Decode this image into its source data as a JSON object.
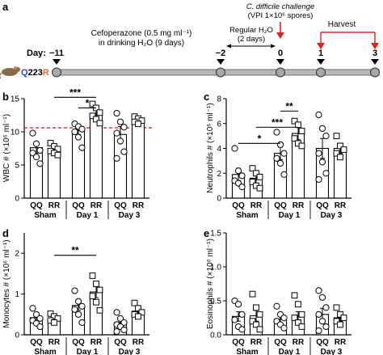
{
  "panel_a": {
    "letter": "a",
    "day_label": "Day:",
    "days": [
      "−11",
      "−2",
      "0",
      "1",
      "3"
    ],
    "mouse_label": {
      "q": "Q",
      "mid": "223",
      "r": "R"
    },
    "cef_line1": "Cefoperazone (0.5 mg ml⁻¹)",
    "cef_line2": "in drinking H₂O (9 days)",
    "reg_line1": "Regular H₂O",
    "reg_line2": "(2 days)",
    "cdiff_line1": "C. difficile challenge",
    "cdiff_line2": "(VPI 1×10⁶ spores)",
    "harvest": "Harvest",
    "colors": {
      "arrow_red": "#e02020",
      "q_blue": "#1f4fc4",
      "r_orange": "#e07020",
      "timeline": "#000000"
    }
  },
  "chart_data": [
    {
      "type": "bar",
      "panel": "b",
      "ylabel": "WBC # (×10⁶ ml⁻¹)",
      "ylim": [
        0,
        15
      ],
      "yticks": [
        "0",
        "5",
        "10",
        "15"
      ],
      "categories": [
        "QQ",
        "RR",
        "QQ",
        "RR",
        "QQ",
        "RR"
      ],
      "groups": [
        "Sham",
        "Day 1",
        "Day 3"
      ],
      "values": [
        7.6,
        7.4,
        10.2,
        12.8,
        9.6,
        11.8
      ],
      "errors": [
        0.8,
        0.5,
        0.6,
        0.7,
        1.2,
        0.3
      ],
      "points": [
        [
          9.8,
          8.2,
          7.2,
          6.8,
          6.2,
          5.2
        ],
        [
          8.3,
          7.8,
          7.4,
          7.1,
          6.8,
          6.5
        ],
        [
          11.2,
          10.8,
          10.4,
          10.0,
          9.2,
          7.6
        ],
        [
          14.2,
          13.6,
          12.9,
          12.4,
          11.9,
          11.3
        ],
        [
          12.8,
          11.5,
          10.7,
          9.8,
          8.6,
          7.0,
          6.0
        ],
        [
          12.3,
          12.0,
          11.7,
          11.5,
          11.2
        ]
      ],
      "reference_line": 10.6,
      "significance": [
        {
          "from": 1,
          "to": 3,
          "label": "***",
          "level": 15.2
        },
        {
          "from": 2,
          "to": 3,
          "label": "*",
          "level": 13.6
        }
      ]
    },
    {
      "type": "bar",
      "panel": "c",
      "ylabel": "Neutrophils # (×10⁶ ml⁻¹)",
      "ylim": [
        0,
        8
      ],
      "yticks": [
        "0",
        "2",
        "4",
        "6",
        "8"
      ],
      "categories": [
        "QQ",
        "RR",
        "QQ",
        "RR",
        "QQ",
        "RR"
      ],
      "groups": [
        "Sham",
        "Day 1",
        "Day 3"
      ],
      "values": [
        1.9,
        1.6,
        3.6,
        5.2,
        4.0,
        4.0
      ],
      "errors": [
        0.5,
        0.4,
        0.5,
        0.5,
        0.8,
        0.4
      ],
      "points": [
        [
          4.0,
          2.2,
          1.8,
          1.4,
          1.2,
          0.9
        ],
        [
          2.4,
          2.0,
          1.7,
          1.3,
          1.0,
          0.8
        ],
        [
          5.3,
          4.3,
          3.6,
          3.2,
          2.8,
          1.9
        ],
        [
          6.2,
          5.9,
          5.4,
          4.8,
          4.4,
          4.2
        ],
        [
          6.7,
          5.6,
          5.0,
          3.6,
          2.9,
          2.0,
          1.5
        ],
        [
          5.0,
          4.2,
          3.9,
          3.6,
          3.3
        ]
      ],
      "significance": [
        {
          "from": 0,
          "to": 2,
          "label": "*",
          "level": 4.4
        },
        {
          "from": 1,
          "to": 3,
          "label": "***",
          "level": 5.7
        },
        {
          "from": 2,
          "to": 3,
          "label": "**",
          "level": 7.0
        }
      ]
    },
    {
      "type": "bar",
      "panel": "d",
      "ylabel": "Monocytes # (×10⁶ ml⁻¹)",
      "ylim": [
        0,
        2.5
      ],
      "yticks": [
        "0",
        "1",
        "2"
      ],
      "categories": [
        "QQ",
        "RR",
        "QQ",
        "RR",
        "QQ",
        "RR"
      ],
      "groups": [
        "Sham",
        "Day 1",
        "Day 3"
      ],
      "values": [
        0.42,
        0.4,
        0.72,
        1.05,
        0.3,
        0.58
      ],
      "errors": [
        0.08,
        0.05,
        0.12,
        0.14,
        0.06,
        0.08
      ],
      "points": [
        [
          0.65,
          0.5,
          0.4,
          0.35,
          0.28,
          0.2
        ],
        [
          0.52,
          0.45,
          0.4,
          0.35,
          0.3
        ],
        [
          1.08,
          0.82,
          0.7,
          0.62,
          0.5,
          0.3
        ],
        [
          1.45,
          1.25,
          1.1,
          0.95,
          0.8,
          0.6
        ],
        [
          0.55,
          0.4,
          0.3,
          0.25,
          0.2,
          0.12,
          0.08
        ],
        [
          0.78,
          0.65,
          0.55,
          0.5,
          0.45
        ]
      ],
      "significance": [
        {
          "from": 1,
          "to": 3,
          "label": "**",
          "level": 1.95
        }
      ]
    },
    {
      "type": "bar",
      "panel": "e",
      "ylabel": "Eosinophils # (×10⁶ ml⁻¹)",
      "ylim": [
        0,
        1.5
      ],
      "yticks": [
        "0.0",
        "0.5",
        "1.0",
        "1.5"
      ],
      "categories": [
        "QQ",
        "RR",
        "QQ",
        "RR",
        "QQ",
        "RR"
      ],
      "groups": [
        "Sham",
        "Day 1",
        "Day 3"
      ],
      "values": [
        0.27,
        0.28,
        0.23,
        0.27,
        0.3,
        0.25
      ],
      "errors": [
        0.07,
        0.08,
        0.05,
        0.07,
        0.09,
        0.05
      ],
      "points": [
        [
          0.5,
          0.45,
          0.3,
          0.22,
          0.12,
          0.08
        ],
        [
          0.6,
          0.4,
          0.3,
          0.2,
          0.15,
          0.08
        ],
        [
          0.42,
          0.3,
          0.25,
          0.2,
          0.15,
          0.1
        ],
        [
          0.58,
          0.45,
          0.3,
          0.25,
          0.18,
          0.12
        ],
        [
          0.65,
          0.55,
          0.4,
          0.3,
          0.2,
          0.12,
          0.06
        ],
        [
          0.4,
          0.3,
          0.25,
          0.2,
          0.15
        ]
      ],
      "significance": []
    }
  ]
}
